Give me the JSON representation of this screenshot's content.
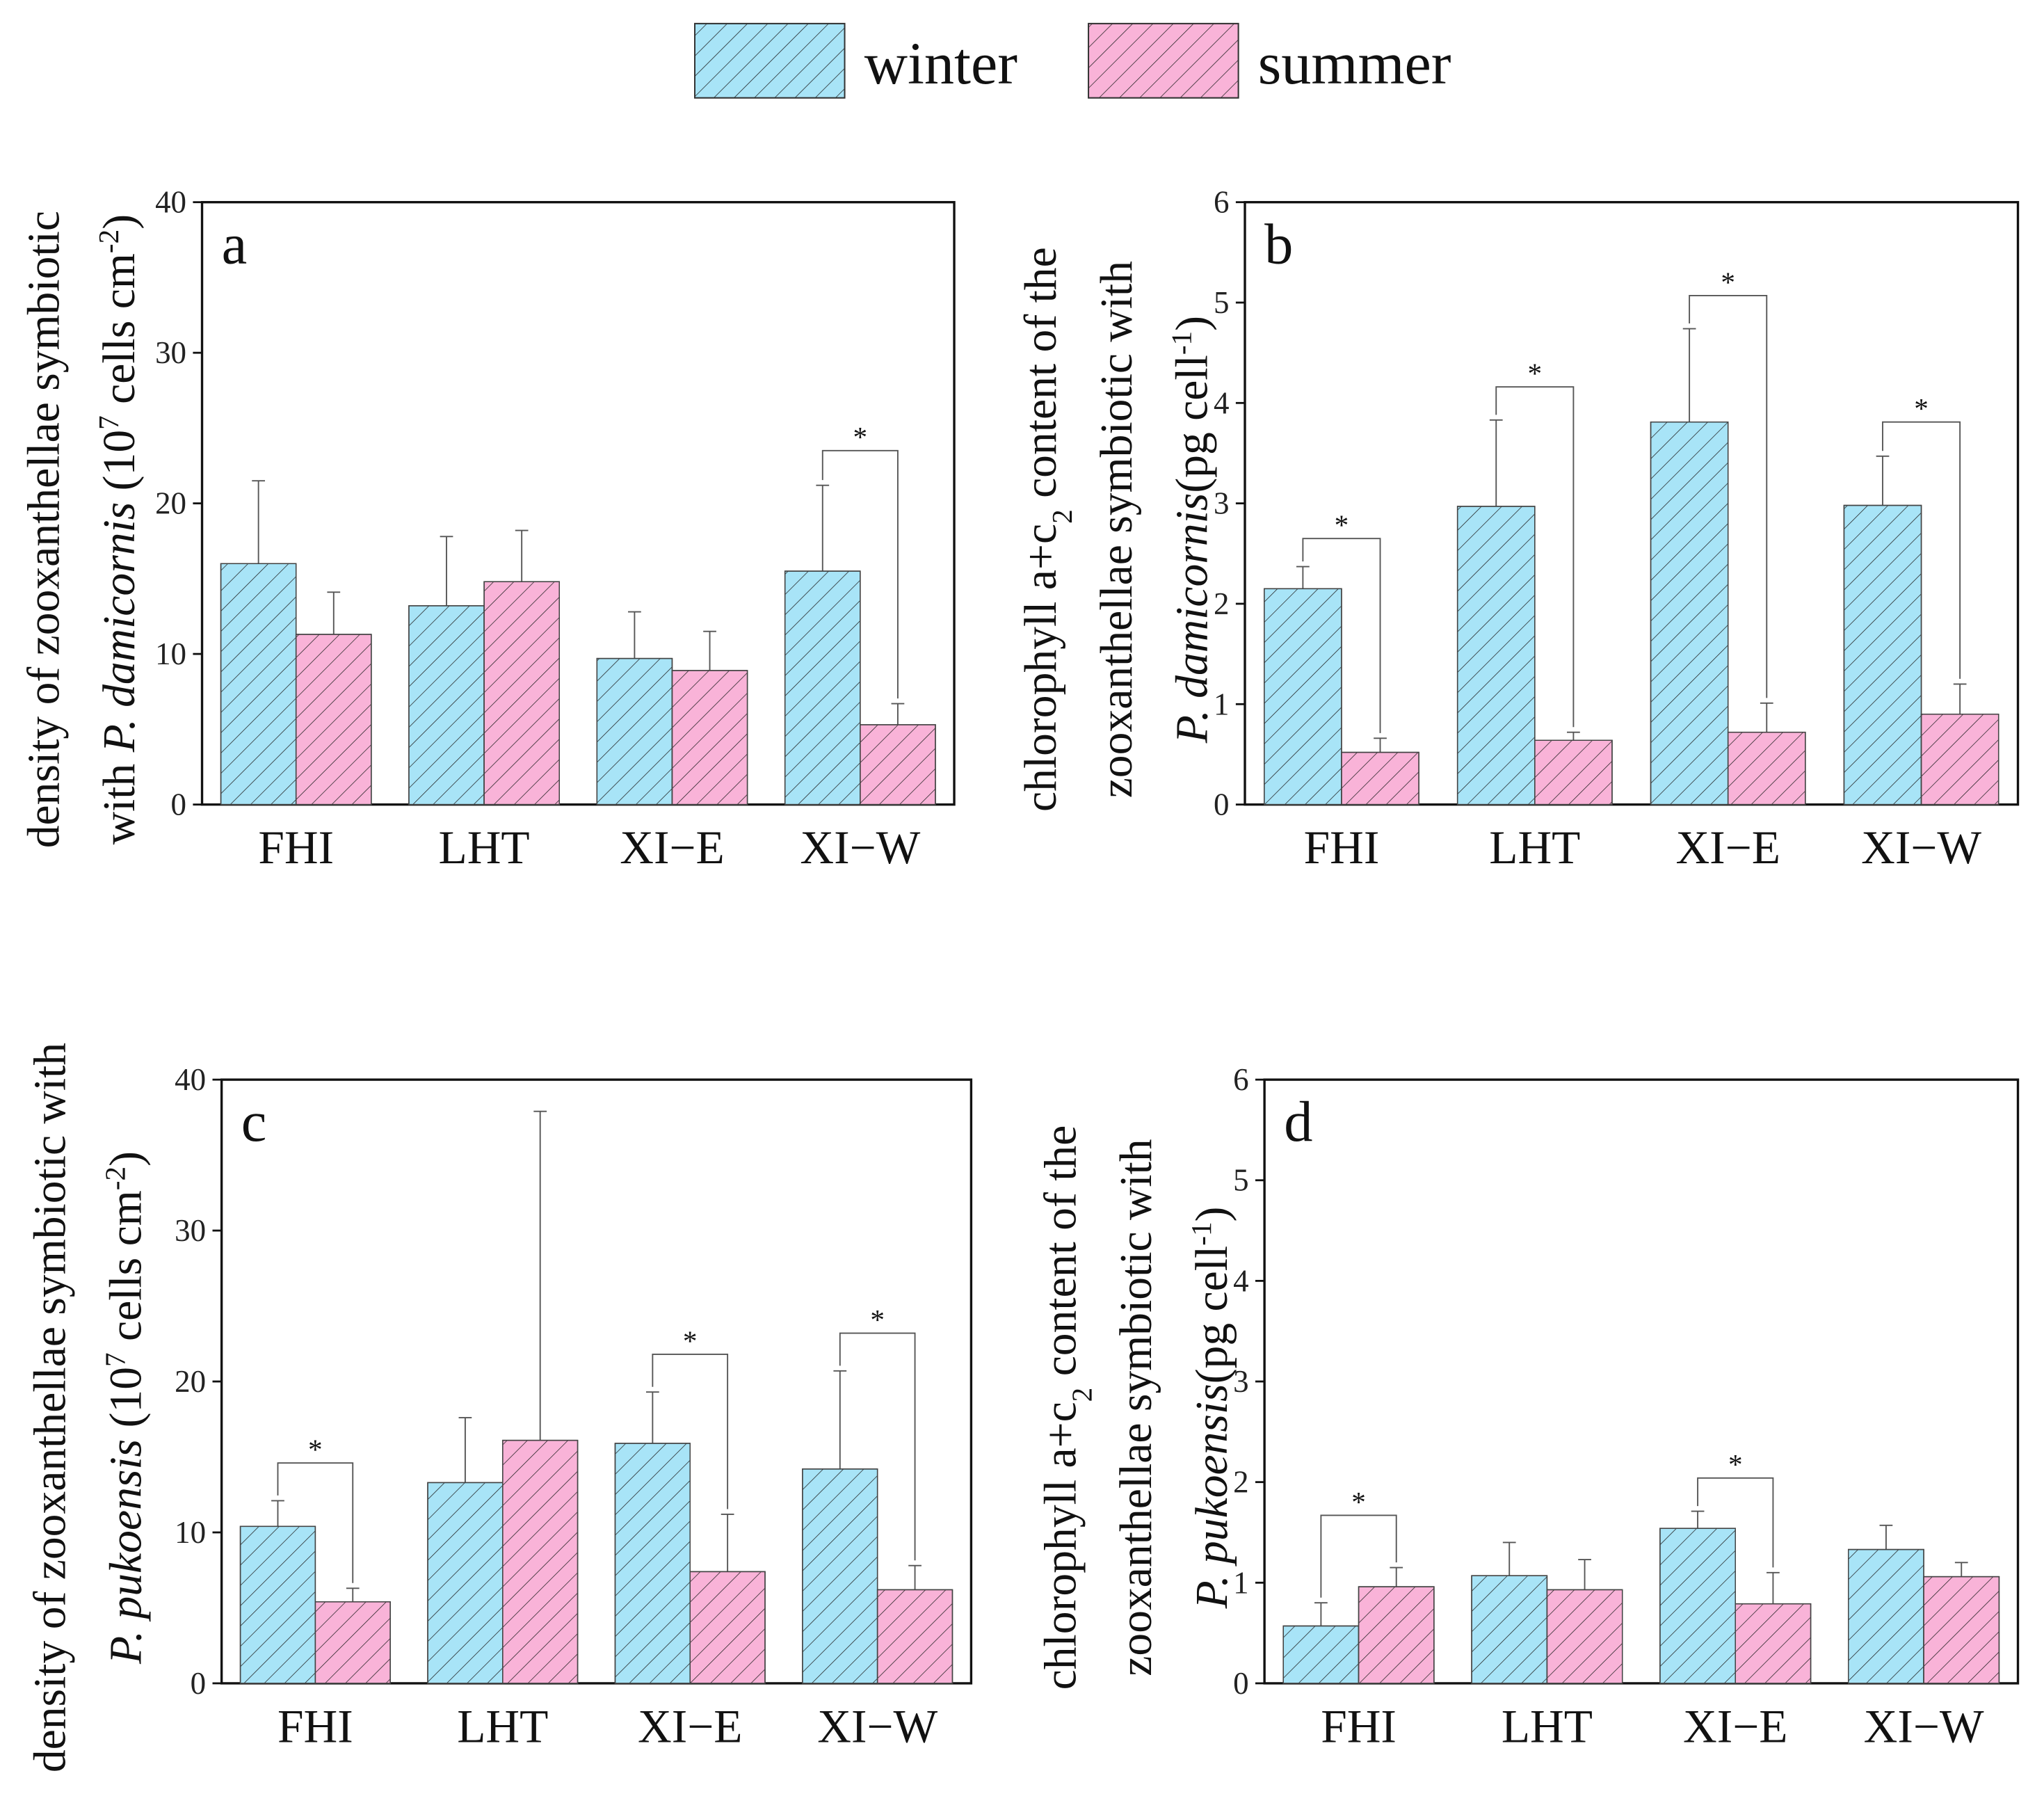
{
  "legend": [
    {
      "name": "winter",
      "color": "#a8e4f7"
    },
    {
      "name": "summer",
      "color": "#f9b3d8"
    }
  ],
  "chart_data": [
    {
      "type": "bar",
      "panel_label": "a",
      "categories": [
        "FHI",
        "LHT",
        "XI−E",
        "XI−W"
      ],
      "ylim": [
        0,
        40
      ],
      "yticks": [
        0,
        10,
        20,
        30,
        40
      ],
      "ylabel_lines": [
        [
          {
            "t": "density of zooxanthellae symbiotic"
          }
        ],
        [
          {
            "t": "with "
          },
          {
            "t": "P. damicornis",
            "i": true
          },
          {
            "t": " (10"
          },
          {
            "t": "7",
            "sup": true
          },
          {
            "t": " cells cm"
          },
          {
            "t": "-2",
            "sup": true
          },
          {
            "t": ")"
          }
        ]
      ],
      "series": [
        {
          "name": "winter",
          "values": [
            16.0,
            13.2,
            9.7,
            15.5
          ],
          "error_upper": [
            21.5,
            17.8,
            12.8,
            21.2
          ]
        },
        {
          "name": "summer",
          "values": [
            11.3,
            14.8,
            8.9,
            5.3
          ],
          "error_upper": [
            14.1,
            18.2,
            11.5,
            6.7
          ]
        }
      ],
      "significance": [
        {
          "category": "XI−W",
          "mark": "*",
          "level": 23.5
        }
      ]
    },
    {
      "type": "bar",
      "panel_label": "b",
      "categories": [
        "FHI",
        "LHT",
        "XI−E",
        "XI−W"
      ],
      "ylim": [
        0,
        6
      ],
      "yticks": [
        0,
        1,
        2,
        3,
        4,
        5,
        6
      ],
      "ylabel_lines": [
        [
          {
            "t": "chlorophyll a+c"
          },
          {
            "t": "2",
            "sub": true
          },
          {
            "t": " content of the"
          }
        ],
        [
          {
            "t": "zooxanthellae symbiotic with"
          }
        ],
        [
          {
            "t": "P. damicornis",
            "i": true
          },
          {
            "t": "(pg cell"
          },
          {
            "t": "-1",
            "sup": true
          },
          {
            "t": ")"
          }
        ]
      ],
      "series": [
        {
          "name": "winter",
          "values": [
            2.15,
            2.97,
            3.81,
            2.98
          ],
          "error_upper": [
            2.37,
            3.83,
            4.74,
            3.47
          ]
        },
        {
          "name": "summer",
          "values": [
            0.52,
            0.64,
            0.72,
            0.9
          ],
          "error_upper": [
            0.66,
            0.72,
            1.01,
            1.2
          ]
        }
      ],
      "significance": [
        {
          "category": "FHI",
          "mark": "*",
          "level": 2.65
        },
        {
          "category": "LHT",
          "mark": "*",
          "level": 4.16
        },
        {
          "category": "XI−E",
          "mark": "*",
          "level": 5.07
        },
        {
          "category": "XI−W",
          "mark": "*",
          "level": 3.81
        }
      ]
    },
    {
      "type": "bar",
      "panel_label": "c",
      "categories": [
        "FHI",
        "LHT",
        "XI−E",
        "XI−W"
      ],
      "ylim": [
        0,
        40
      ],
      "yticks": [
        0,
        10,
        20,
        30,
        40
      ],
      "ylabel_lines": [
        [
          {
            "t": "density of zooxanthellae symbiotic with"
          }
        ],
        [
          {
            "t": "P. pukoensis",
            "i": true
          },
          {
            "t": " (10"
          },
          {
            "t": "7",
            "sup": true
          },
          {
            "t": " cells cm"
          },
          {
            "t": "-2",
            "sup": true
          },
          {
            "t": ")"
          }
        ]
      ],
      "series": [
        {
          "name": "winter",
          "values": [
            10.4,
            13.3,
            15.9,
            14.2
          ],
          "error_upper": [
            12.1,
            17.6,
            19.3,
            20.7
          ]
        },
        {
          "name": "summer",
          "values": [
            5.4,
            16.1,
            7.4,
            6.2
          ],
          "error_upper": [
            6.3,
            37.9,
            11.2,
            7.8
          ]
        }
      ],
      "significance": [
        {
          "category": "FHI",
          "mark": "*",
          "level": 14.6
        },
        {
          "category": "XI−E",
          "mark": "*",
          "level": 21.8
        },
        {
          "category": "XI−W",
          "mark": "*",
          "level": 23.2
        }
      ]
    },
    {
      "type": "bar",
      "panel_label": "d",
      "categories": [
        "FHI",
        "LHT",
        "XI−E",
        "XI−W"
      ],
      "ylim": [
        0,
        6
      ],
      "yticks": [
        0,
        1,
        2,
        3,
        4,
        5,
        6
      ],
      "ylabel_lines": [
        [
          {
            "t": "chlorophyll a+c"
          },
          {
            "t": "2",
            "sub": true
          },
          {
            "t": " content of the"
          }
        ],
        [
          {
            "t": "zooxanthellae symbiotic with"
          }
        ],
        [
          {
            "t": "P. pukoensis",
            "i": true
          },
          {
            "t": "(pg cell"
          },
          {
            "t": "-1",
            "sup": true
          },
          {
            "t": ")"
          }
        ]
      ],
      "series": [
        {
          "name": "winter",
          "values": [
            0.57,
            1.07,
            1.54,
            1.33
          ],
          "error_upper": [
            0.8,
            1.4,
            1.71,
            1.57
          ]
        },
        {
          "name": "summer",
          "values": [
            0.96,
            0.93,
            0.79,
            1.06
          ],
          "error_upper": [
            1.15,
            1.23,
            1.1,
            1.2
          ]
        }
      ],
      "significance": [
        {
          "category": "FHI",
          "mark": "*",
          "level": 1.67
        },
        {
          "category": "XI−E",
          "mark": "*",
          "level": 2.04
        }
      ]
    }
  ]
}
